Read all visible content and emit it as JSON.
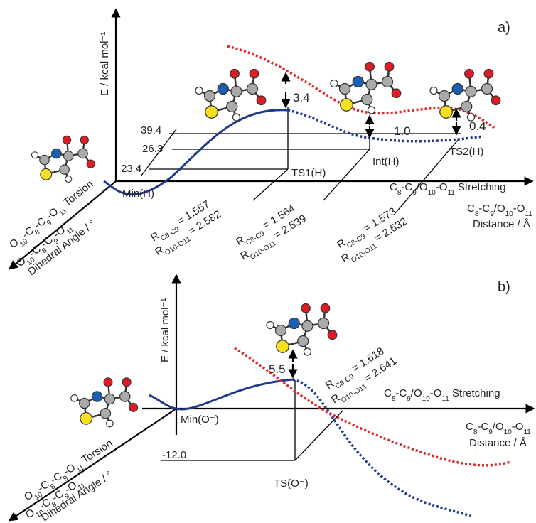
{
  "panel_a": {
    "tag": "a)",
    "energy_axis": "E / kcal mol⁻¹",
    "stretching_axis": [
      "C",
      "8",
      "-C",
      "9",
      "/O",
      "10",
      "-O",
      "11",
      " Stretching"
    ],
    "distance_axis_line1": [
      "C",
      "8",
      "-C",
      "9",
      "/O",
      "10",
      "-O",
      "11"
    ],
    "distance_axis_line2": "Distance / Å",
    "torsion_axis": [
      "O",
      "10",
      "-C",
      "8",
      "-C",
      "9",
      "-O",
      "11",
      " Torsion"
    ],
    "dihedral_axis_line1": [
      "O",
      "10",
      "-C",
      "8",
      "-C",
      "9",
      "-O",
      "11"
    ],
    "dihedral_axis_line2": "Dihedral Angle / °",
    "states": [
      "Min(H)",
      "TS1(H)",
      "Int(H)",
      "TS2(H)"
    ],
    "dihedral_levels": [
      "39.4",
      "26.3",
      "23.4"
    ],
    "barriers": [
      "3.4",
      "1.0",
      "0.4"
    ],
    "distances": [
      [
        [
          "R",
          "C8-C9",
          " = 1.557"
        ],
        [
          "R",
          "O10-O11",
          " = 2.582"
        ]
      ],
      [
        [
          "R",
          "C8-C9",
          " = 1.564"
        ],
        [
          "R",
          "O10-O11",
          " = 2.539"
        ]
      ],
      [
        [
          "R",
          "C8-C9",
          " = 1.573"
        ],
        [
          "R",
          "O10-O11",
          " = 2.632"
        ]
      ]
    ]
  },
  "panel_b": {
    "tag": "b)",
    "energy_axis": "E / kcal mol⁻¹",
    "stretching_axis": [
      "C",
      "8",
      "-C",
      "9",
      "/O",
      "10",
      "-O",
      "11",
      " Stretching"
    ],
    "distance_axis_line1": [
      "C",
      "8",
      "-C",
      "9",
      "/O",
      "10",
      "-O",
      "11"
    ],
    "distance_axis_line2": "Distance / Å",
    "torsion_axis": [
      "O",
      "10",
      "-C",
      "8",
      "-C",
      "9",
      "-O",
      "11",
      " Torsion"
    ],
    "dihedral_axis_line1": [
      "O",
      "10",
      "-C",
      "8",
      "-C",
      "9",
      "-O",
      "11"
    ],
    "dihedral_axis_line2": "Dihedral Angle / °",
    "states": [
      "Min(O⁻)",
      "TS(O⁻)"
    ],
    "dihedral_levels": [
      "-12.0"
    ],
    "barriers": [
      "5.5"
    ],
    "distances": [
      [
        [
          "R",
          "C8-C9",
          " = 1.618"
        ],
        [
          "R",
          "O10-O11",
          " = 2.641"
        ]
      ]
    ]
  }
}
